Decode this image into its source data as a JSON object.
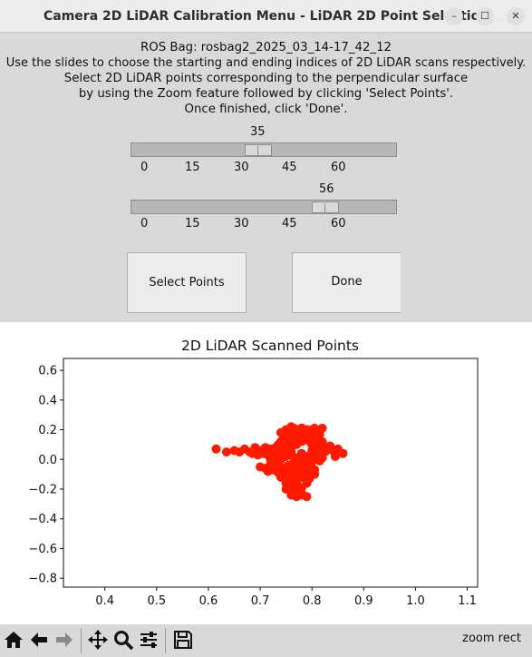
{
  "window": {
    "title": "Camera 2D LiDAR Calibration Menu - LiDAR 2D Point Selection",
    "minimize_glyph": "–",
    "maximize_glyph": "☐",
    "close_glyph": "✕"
  },
  "header": {
    "bag_line": "ROS Bag: rosbag2_2025_03_14-17_42_12",
    "line1": "Use the slides to choose the starting and ending indices of 2D LiDAR scans respectively.",
    "line2": "Select 2D LiDAR points corresponding to the perpendicular surface",
    "line3": "by using the Zoom feature followed by clicking 'Select Points'.",
    "line4": "Once finished, click 'Done'."
  },
  "sliders": {
    "start": {
      "value": "35",
      "ticks": [
        "0",
        "15",
        "30",
        "45",
        "60"
      ]
    },
    "end": {
      "value": "56",
      "ticks": [
        "0",
        "15",
        "30",
        "45",
        "60"
      ]
    }
  },
  "buttons": {
    "select_points": "Select Points",
    "done": "Done"
  },
  "toolbar": {
    "mode": "zoom rect",
    "icons": [
      "home-icon",
      "back-arrow-icon",
      "forward-arrow-icon",
      "pan-icon",
      "zoom-icon",
      "subplots-icon",
      "save-icon"
    ]
  },
  "colors": {
    "points": "#ff1a00",
    "background": "#d9d9d9"
  },
  "chart_data": {
    "type": "scatter",
    "title": "2D LiDAR Scanned Points",
    "xlabel": "",
    "ylabel": "",
    "xlim": [
      0.32,
      1.12
    ],
    "ylim": [
      -0.86,
      0.68
    ],
    "xticks": [
      "0.4",
      "0.5",
      "0.6",
      "0.7",
      "0.8",
      "0.9",
      "1.0",
      "1.1"
    ],
    "yticks": [
      "0.6",
      "0.4",
      "0.2",
      "0.0",
      "−0.2",
      "−0.4",
      "−0.6",
      "−0.8"
    ],
    "xtick_values": [
      0.4,
      0.5,
      0.6,
      0.7,
      0.8,
      0.9,
      1.0,
      1.1
    ],
    "ytick_values": [
      0.6,
      0.4,
      0.2,
      0.0,
      -0.2,
      -0.4,
      -0.6,
      -0.8
    ],
    "series": [
      {
        "x": [
          0.615,
          0.635,
          0.65,
          0.66,
          0.67,
          0.68,
          0.69,
          0.7,
          0.71,
          0.72,
          0.705,
          0.715,
          0.695,
          0.685,
          0.725,
          0.73,
          0.735,
          0.74,
          0.745,
          0.75,
          0.755,
          0.76,
          0.765,
          0.77,
          0.775,
          0.78,
          0.785,
          0.79,
          0.795,
          0.8,
          0.805,
          0.81,
          0.815,
          0.82,
          0.83,
          0.84,
          0.85,
          0.86,
          0.845,
          0.835,
          0.825,
          0.73,
          0.74,
          0.75,
          0.76,
          0.77,
          0.78,
          0.79,
          0.8,
          0.81,
          0.72,
          0.73,
          0.74,
          0.75,
          0.76,
          0.77,
          0.78,
          0.79,
          0.8,
          0.81,
          0.815,
          0.73,
          0.74,
          0.75,
          0.76,
          0.77,
          0.78,
          0.79,
          0.8,
          0.74,
          0.75,
          0.76,
          0.77,
          0.78,
          0.79,
          0.8,
          0.74,
          0.75,
          0.76,
          0.77,
          0.78,
          0.79,
          0.75,
          0.76,
          0.77,
          0.78,
          0.79,
          0.75,
          0.76,
          0.77,
          0.78,
          0.76,
          0.77,
          0.78,
          0.79,
          0.74,
          0.75,
          0.76,
          0.77,
          0.78,
          0.79,
          0.8,
          0.81,
          0.82,
          0.75,
          0.76,
          0.77,
          0.78,
          0.79,
          0.8,
          0.81,
          0.82,
          0.755,
          0.765,
          0.775,
          0.785,
          0.795,
          0.805,
          0.775,
          0.785,
          0.795,
          0.805,
          0.76,
          0.77,
          0.72,
          0.71,
          0.7,
          0.715,
          0.725,
          0.735,
          0.74,
          0.75,
          0.76,
          0.77,
          0.78,
          0.79,
          0.8,
          0.81,
          0.72,
          0.73,
          0.74,
          0.75,
          0.76,
          0.77,
          0.78,
          0.79,
          0.8,
          0.81,
          0.82
        ],
        "y": [
          0.07,
          0.05,
          0.06,
          0.05,
          0.07,
          0.05,
          0.08,
          0.06,
          0.08,
          0.07,
          0.04,
          0.03,
          0.03,
          0.04,
          0.06,
          0.08,
          0.1,
          0.12,
          0.14,
          0.16,
          0.18,
          0.2,
          0.21,
          0.2,
          0.19,
          0.21,
          0.18,
          0.17,
          0.19,
          0.2,
          0.21,
          0.18,
          0.17,
          0.21,
          0.08,
          0.06,
          0.07,
          0.04,
          0.02,
          0.09,
          0.05,
          0.02,
          0.04,
          0.06,
          0.08,
          0.1,
          0.12,
          0.14,
          0.1,
          0.06,
          0.01,
          -0.01,
          0.0,
          0.02,
          0.03,
          0.0,
          -0.02,
          0.01,
          0.0,
          0.02,
          -0.01,
          -0.03,
          -0.05,
          -0.07,
          -0.04,
          -0.06,
          -0.05,
          -0.03,
          -0.02,
          -0.08,
          -0.1,
          -0.09,
          -0.11,
          -0.08,
          -0.1,
          -0.07,
          -0.12,
          -0.14,
          -0.13,
          -0.15,
          -0.12,
          -0.14,
          -0.16,
          -0.18,
          -0.17,
          -0.19,
          -0.16,
          -0.2,
          -0.22,
          -0.21,
          -0.23,
          -0.24,
          -0.25,
          -0.24,
          -0.25,
          0.1,
          0.12,
          0.14,
          0.16,
          0.15,
          0.13,
          0.11,
          0.09,
          0.07,
          0.03,
          0.05,
          0.01,
          0.04,
          0.02,
          0.06,
          0.03,
          0.01,
          -0.04,
          -0.02,
          -0.06,
          -0.03,
          -0.05,
          -0.07,
          -0.11,
          -0.09,
          -0.13,
          -0.1,
          -0.2,
          -0.22,
          -0.03,
          -0.06,
          -0.05,
          -0.08,
          -0.07,
          -0.09,
          0.18,
          0.2,
          0.22,
          0.19,
          0.21,
          0.2,
          0.18,
          0.16,
          0.0,
          0.02,
          0.05,
          0.07,
          0.09,
          0.11,
          0.13,
          0.15,
          0.16,
          0.14,
          0.12
        ]
      }
    ]
  }
}
